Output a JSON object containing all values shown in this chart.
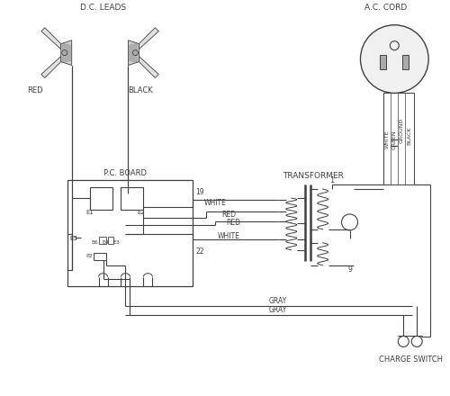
{
  "bg_color": "#ffffff",
  "line_color": "#404040",
  "wire_color": "#606060",
  "labels": {
    "dc_leads": "D.C. LEADS",
    "ac_cord": "A.C. CORD",
    "red": "RED",
    "black": "BLACK",
    "pc_board": "P.C. BOARD",
    "transformer": "TRANSFORMER",
    "white1": "WHITE",
    "red1": "RED",
    "red2": "RED",
    "white2": "WHITE",
    "gray1": "GRAY",
    "gray2": "GRAY",
    "charge_switch": "CHARGE SWITCH",
    "e1": "E1",
    "e2": "E2",
    "e5": "E5",
    "e6": "E6",
    "e4": "E4",
    "e3": "E3",
    "p2": "P2",
    "num1": "1",
    "num9": "9",
    "num19": "19",
    "num22": "22",
    "white_wire": "WHITE",
    "black_wire": "BLACK",
    "green_wire": "GREEN",
    "ground_wire": "GROUND"
  }
}
